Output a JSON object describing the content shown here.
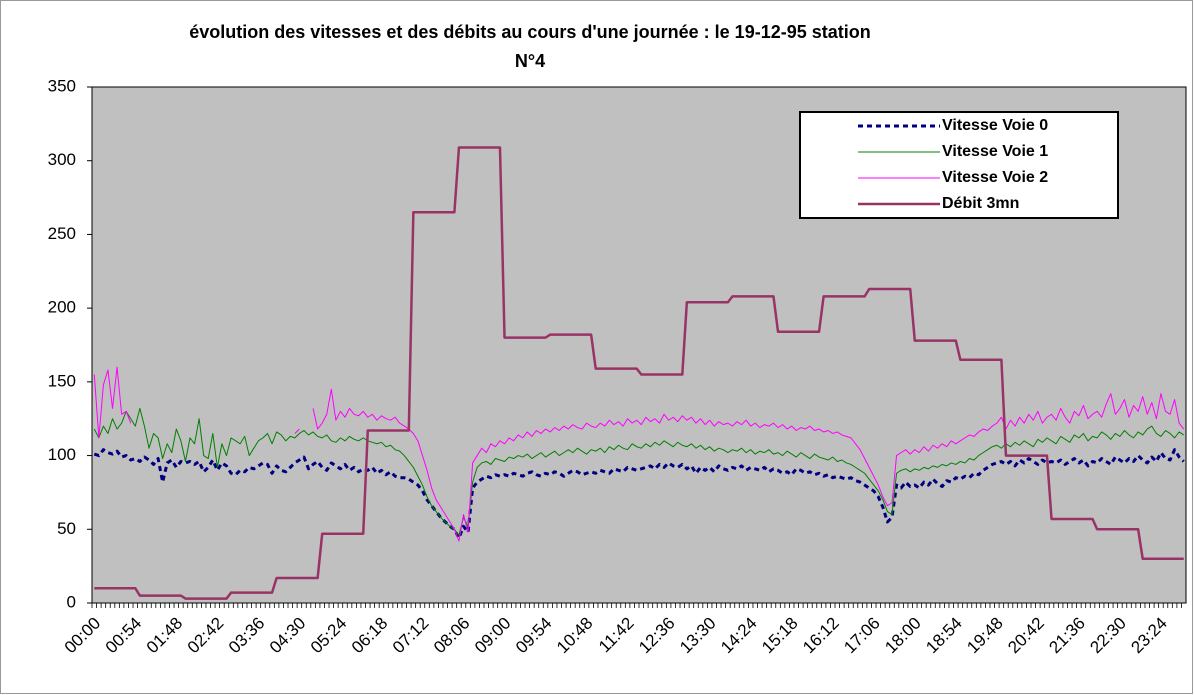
{
  "chart_data": {
    "type": "line",
    "title": [
      "évolution des vitesses et des débits au cours d'une journée : le 19-12-95 station",
      "N°4"
    ],
    "categories": [
      "00:00",
      null,
      null,
      null,
      null,
      null,
      null,
      null,
      null,
      "00:54",
      null,
      null,
      null,
      null,
      null,
      null,
      null,
      null,
      "01:48",
      null,
      null,
      null,
      null,
      null,
      null,
      null,
      null,
      "02:42",
      null,
      null,
      null,
      null,
      null,
      null,
      null,
      null,
      "03:36",
      null,
      null,
      null,
      null,
      null,
      null,
      null,
      null,
      "04:30",
      null,
      null,
      null,
      null,
      null,
      null,
      null,
      null,
      "05:24",
      null,
      null,
      null,
      null,
      null,
      null,
      null,
      null,
      "06:18",
      null,
      null,
      null,
      null,
      null,
      null,
      null,
      null,
      "07:12",
      null,
      null,
      null,
      null,
      null,
      null,
      null,
      null,
      "08:06",
      null,
      null,
      null,
      null,
      null,
      null,
      null,
      null,
      "09:00",
      null,
      null,
      null,
      null,
      null,
      null,
      null,
      null,
      "09:54",
      null,
      null,
      null,
      null,
      null,
      null,
      null,
      null,
      "10:48",
      null,
      null,
      null,
      null,
      null,
      null,
      null,
      null,
      "11:42",
      null,
      null,
      null,
      null,
      null,
      null,
      null,
      null,
      "12:36",
      null,
      null,
      null,
      null,
      null,
      null,
      null,
      null,
      "13:30",
      null,
      null,
      null,
      null,
      null,
      null,
      null,
      null,
      "14:24",
      null,
      null,
      null,
      null,
      null,
      null,
      null,
      null,
      "15:18",
      null,
      null,
      null,
      null,
      null,
      null,
      null,
      null,
      "16:12",
      null,
      null,
      null,
      null,
      null,
      null,
      null,
      null,
      "17:06",
      null,
      null,
      null,
      null,
      null,
      null,
      null,
      null,
      "18:00",
      null,
      null,
      null,
      null,
      null,
      null,
      null,
      null,
      "18:54",
      null,
      null,
      null,
      null,
      null,
      null,
      null,
      null,
      "19:48",
      null,
      null,
      null,
      null,
      null,
      null,
      null,
      null,
      "20:42",
      null,
      null,
      null,
      null,
      null,
      null,
      null,
      null,
      "21:36",
      null,
      null,
      null,
      null,
      null,
      null,
      null,
      null,
      "22:30",
      null,
      null,
      null,
      null,
      null,
      null,
      null,
      null,
      "23:24",
      null,
      null,
      null,
      null,
      null
    ],
    "series": [
      {
        "name": "Vitesse Voie 0",
        "color": "#000080",
        "dash": true,
        "width": 3,
        "values": [
          101,
          100,
          104,
          102,
          101,
          103,
          99,
          100,
          97,
          98,
          96,
          99,
          97,
          94,
          98,
          82,
          95,
          97,
          92,
          96,
          95,
          96,
          94,
          96,
          89,
          92,
          97,
          90,
          95,
          93,
          88,
          87,
          90,
          89,
          92,
          91,
          93,
          95,
          94,
          88,
          93,
          90,
          89,
          92,
          95,
          97,
          99,
          91,
          94,
          96,
          92,
          90,
          95,
          93,
          91,
          94,
          90,
          92,
          89,
          91,
          90,
          92,
          88,
          90,
          87,
          89,
          86,
          85,
          85,
          84,
          82,
          80,
          76,
          70,
          66,
          62,
          58,
          55,
          52,
          50,
          44,
          52,
          48,
          78,
          82,
          84,
          86,
          85,
          87,
          86,
          87,
          86,
          88,
          87,
          86,
          88,
          89,
          87,
          86,
          88,
          87,
          89,
          88,
          86,
          88,
          90,
          89,
          87,
          88,
          89,
          88,
          90,
          89,
          88,
          91,
          90,
          89,
          92,
          91,
          90,
          91,
          92,
          93,
          91,
          94,
          92,
          95,
          93,
          92,
          94,
          91,
          93,
          88,
          92,
          90,
          92,
          89,
          93,
          91,
          90,
          92,
          91,
          93,
          90,
          92,
          91,
          90,
          92,
          89,
          91,
          90,
          88,
          89,
          87,
          91,
          90,
          88,
          89,
          87,
          88,
          86,
          87,
          85,
          86,
          85,
          84,
          85,
          83,
          82,
          80,
          78,
          76,
          72,
          65,
          55,
          58,
          80,
          78,
          82,
          79,
          80,
          78,
          82,
          80,
          84,
          81,
          79,
          83,
          82,
          85,
          84,
          86,
          85,
          88,
          87,
          90,
          92,
          94,
          95,
          96,
          94,
          96,
          93,
          97,
          95,
          98,
          96,
          94,
          97,
          95,
          96,
          95,
          97,
          94,
          96,
          98,
          95,
          97,
          93,
          96,
          95,
          98,
          96,
          94,
          99,
          97,
          95,
          98,
          96,
          100,
          97,
          95,
          99,
          96,
          102,
          98,
          97,
          104,
          99,
          96
        ]
      },
      {
        "name": "Vitesse Voie 1",
        "color": "#008000",
        "dash": false,
        "width": 1,
        "values": [
          118,
          112,
          120,
          115,
          125,
          118,
          122,
          130,
          125,
          120,
          132,
          120,
          105,
          115,
          112,
          98,
          108,
          102,
          118,
          110,
          96,
          112,
          108,
          125,
          100,
          98,
          115,
          92,
          108,
          100,
          112,
          110,
          108,
          113,
          100,
          105,
          110,
          112,
          115,
          108,
          116,
          114,
          110,
          113,
          112,
          115,
          117,
          114,
          116,
          113,
          112,
          114,
          110,
          109,
          112,
          110,
          113,
          111,
          110,
          112,
          110,
          109,
          108,
          109,
          106,
          107,
          104,
          103,
          100,
          96,
          92,
          86,
          80,
          72,
          66,
          62,
          58,
          55,
          52,
          50,
          46,
          58,
          52,
          82,
          92,
          95,
          96,
          94,
          98,
          97,
          96,
          99,
          98,
          100,
          99,
          101,
          98,
          100,
          102,
          99,
          101,
          103,
          100,
          102,
          104,
          102,
          105,
          103,
          101,
          104,
          103,
          105,
          102,
          106,
          104,
          107,
          105,
          104,
          108,
          106,
          105,
          108,
          106,
          109,
          107,
          110,
          108,
          106,
          109,
          107,
          106,
          108,
          105,
          107,
          104,
          106,
          103,
          105,
          104,
          102,
          104,
          103,
          105,
          102,
          104,
          101,
          103,
          102,
          104,
          101,
          102,
          100,
          103,
          101,
          99,
          102,
          100,
          98,
          101,
          99,
          98,
          97,
          99,
          96,
          97,
          95,
          94,
          92,
          90,
          88,
          84,
          80,
          76,
          70,
          62,
          60,
          88,
          90,
          91,
          89,
          91,
          90,
          92,
          91,
          93,
          92,
          94,
          93,
          95,
          94,
          96,
          95,
          98,
          97,
          100,
          102,
          104,
          106,
          107,
          105,
          108,
          106,
          109,
          107,
          110,
          108,
          106,
          111,
          109,
          112,
          110,
          108,
          113,
          111,
          109,
          114,
          112,
          115,
          110,
          113,
          112,
          116,
          114,
          111,
          115,
          113,
          117,
          114,
          112,
          116,
          114,
          118,
          120,
          115,
          113,
          117,
          115,
          112,
          116,
          114
        ]
      },
      {
        "name": "Vitesse Voie 2",
        "color": "#ff00ff",
        "dash": false,
        "width": 1,
        "values": [
          155,
          112,
          148,
          158,
          132,
          160,
          128,
          130,
          122,
          null,
          null,
          null,
          null,
          null,
          null,
          null,
          null,
          null,
          null,
          null,
          null,
          null,
          null,
          null,
          null,
          null,
          null,
          null,
          null,
          null,
          null,
          null,
          null,
          null,
          null,
          null,
          null,
          null,
          null,
          null,
          null,
          null,
          null,
          null,
          115,
          118,
          null,
          null,
          132,
          118,
          122,
          128,
          145,
          124,
          130,
          126,
          132,
          128,
          127,
          130,
          126,
          128,
          124,
          127,
          125,
          124,
          126,
          122,
          120,
          118,
          115,
          110,
          100,
          90,
          78,
          70,
          65,
          60,
          55,
          50,
          42,
          60,
          48,
          95,
          100,
          105,
          102,
          108,
          106,
          110,
          108,
          112,
          110,
          114,
          112,
          116,
          113,
          117,
          115,
          118,
          116,
          119,
          117,
          120,
          118,
          121,
          119,
          118,
          122,
          120,
          119,
          122,
          120,
          124,
          121,
          123,
          120,
          125,
          122,
          124,
          121,
          126,
          123,
          125,
          122,
          128,
          124,
          126,
          123,
          127,
          124,
          126,
          122,
          125,
          121,
          124,
          120,
          123,
          121,
          122,
          120,
          123,
          121,
          124,
          120,
          122,
          119,
          121,
          120,
          122,
          119,
          121,
          118,
          120,
          117,
          119,
          118,
          120,
          117,
          118,
          116,
          117,
          115,
          116,
          114,
          113,
          112,
          108,
          104,
          98,
          92,
          86,
          80,
          72,
          66,
          68,
          100,
          102,
          104,
          101,
          104,
          102,
          106,
          103,
          107,
          105,
          108,
          106,
          110,
          108,
          110,
          112,
          114,
          113,
          116,
          118,
          117,
          120,
          122,
          126,
          118,
          124,
          120,
          126,
          122,
          128,
          124,
          130,
          122,
          126,
          128,
          124,
          132,
          126,
          122,
          130,
          127,
          134,
          125,
          128,
          130,
          126,
          135,
          142,
          128,
          132,
          138,
          126,
          134,
          130,
          140,
          128,
          136,
          125,
          142,
          130,
          128,
          138,
          122,
          118
        ]
      },
      {
        "name": "Débit 3mn",
        "color": "#993366",
        "dash": false,
        "width": 2.5,
        "values": [
          10,
          10,
          10,
          10,
          10,
          10,
          10,
          10,
          10,
          10,
          5,
          5,
          5,
          5,
          5,
          5,
          5,
          5,
          5,
          5,
          3,
          3,
          3,
          3,
          3,
          3,
          3,
          3,
          3,
          3,
          7,
          7,
          7,
          7,
          7,
          7,
          7,
          7,
          7,
          7,
          17,
          17,
          17,
          17,
          17,
          17,
          17,
          17,
          17,
          17,
          47,
          47,
          47,
          47,
          47,
          47,
          47,
          47,
          47,
          47,
          117,
          117,
          117,
          117,
          117,
          117,
          117,
          117,
          117,
          117,
          265,
          265,
          265,
          265,
          265,
          265,
          265,
          265,
          265,
          265,
          309,
          309,
          309,
          309,
          309,
          309,
          309,
          309,
          309,
          309,
          180,
          180,
          180,
          180,
          180,
          180,
          180,
          180,
          180,
          180,
          182,
          182,
          182,
          182,
          182,
          182,
          182,
          182,
          182,
          182,
          159,
          159,
          159,
          159,
          159,
          159,
          159,
          159,
          159,
          159,
          155,
          155,
          155,
          155,
          155,
          155,
          155,
          155,
          155,
          155,
          204,
          204,
          204,
          204,
          204,
          204,
          204,
          204,
          204,
          204,
          208,
          208,
          208,
          208,
          208,
          208,
          208,
          208,
          208,
          208,
          184,
          184,
          184,
          184,
          184,
          184,
          184,
          184,
          184,
          184,
          208,
          208,
          208,
          208,
          208,
          208,
          208,
          208,
          208,
          208,
          213,
          213,
          213,
          213,
          213,
          213,
          213,
          213,
          213,
          213,
          178,
          178,
          178,
          178,
          178,
          178,
          178,
          178,
          178,
          178,
          165,
          165,
          165,
          165,
          165,
          165,
          165,
          165,
          165,
          165,
          100,
          100,
          100,
          100,
          100,
          100,
          100,
          100,
          100,
          100,
          57,
          57,
          57,
          57,
          57,
          57,
          57,
          57,
          57,
          57,
          50,
          50,
          50,
          50,
          50,
          50,
          50,
          50,
          50,
          50,
          30,
          30,
          30,
          30,
          30,
          30,
          30,
          30,
          30,
          30
        ]
      }
    ],
    "ylim": [
      0,
      350
    ],
    "yticks": [
      0,
      50,
      100,
      150,
      200,
      250,
      300,
      350
    ],
    "grid": false,
    "legend": "top-right",
    "plot_background": "#c0c0c0"
  }
}
